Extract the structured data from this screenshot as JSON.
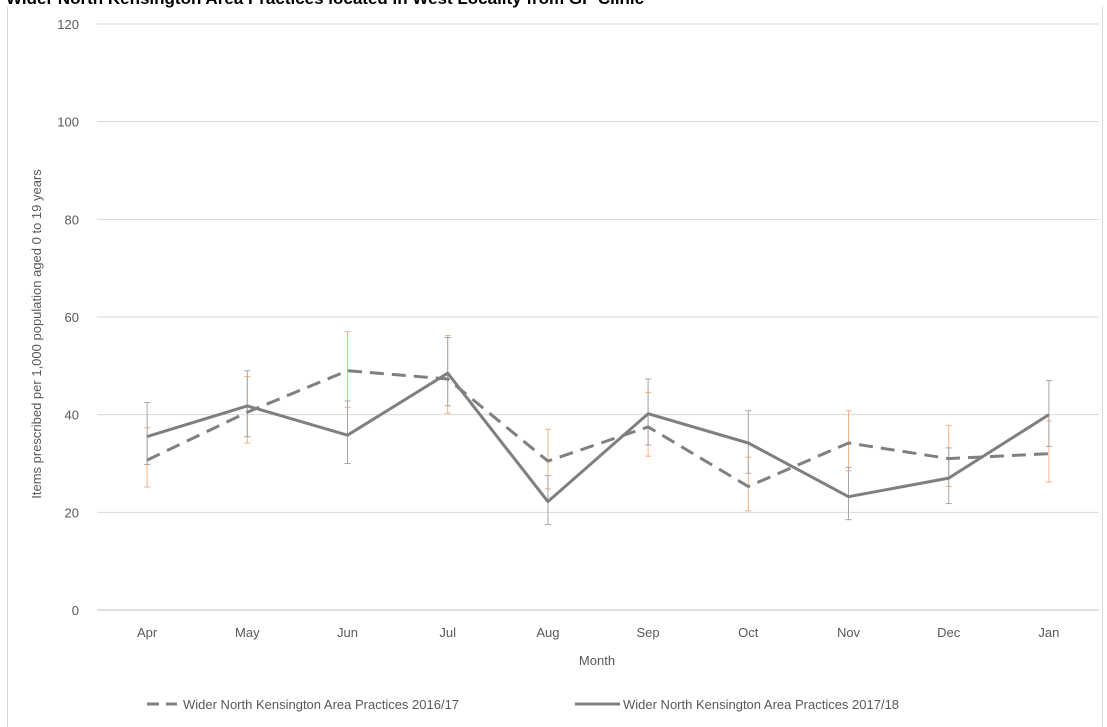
{
  "chart_data": {
    "type": "line",
    "title": "Wider North Kensington Area Practices located in West Locality from GP Clinic",
    "xlabel": "Month",
    "ylabel": "Items prescribed per 1,000 population aged 0 to 19 years",
    "ylim": [
      0,
      120
    ],
    "yticks": [
      0,
      20,
      40,
      60,
      80,
      100,
      120
    ],
    "grid": true,
    "legend": "bottom",
    "categories": [
      "Apr",
      "May",
      "Jun",
      "Jul",
      "Aug",
      "Sep",
      "Oct",
      "Nov",
      "Dec",
      "Jan"
    ],
    "series": [
      {
        "name": "Wider North Kensington Area Practices 2016/17",
        "style": "dashed",
        "color": "#808080",
        "error_color": "#f4b183",
        "values": [
          30.7,
          40.5,
          49.0,
          47.3,
          30.5,
          37.5,
          25.3,
          34.2,
          31.0,
          32.0
        ],
        "error_low": [
          25.2,
          34.2,
          41.5,
          40.3,
          24.8,
          31.5,
          20.3,
          28.5,
          25.3,
          26.2
        ],
        "error_high": [
          37.3,
          47.8,
          57.0,
          56.2,
          37.0,
          44.5,
          31.3,
          40.8,
          37.8,
          38.7
        ]
      },
      {
        "name": "Wider North Kensington Area Practices 2017/18",
        "style": "solid",
        "color": "#7f7f7f",
        "error_color": "#a6a6a6",
        "values": [
          35.5,
          41.8,
          35.8,
          48.5,
          22.2,
          40.2,
          34.2,
          23.2,
          27.0,
          40.0
        ],
        "error_low": [
          29.8,
          35.5,
          30.0,
          41.8,
          17.5,
          33.8,
          28.0,
          18.5,
          21.8,
          33.5
        ],
        "error_high": [
          42.5,
          49.0,
          42.8,
          55.8,
          27.5,
          47.3,
          40.8,
          29.2,
          33.2,
          47.0
        ]
      }
    ]
  }
}
